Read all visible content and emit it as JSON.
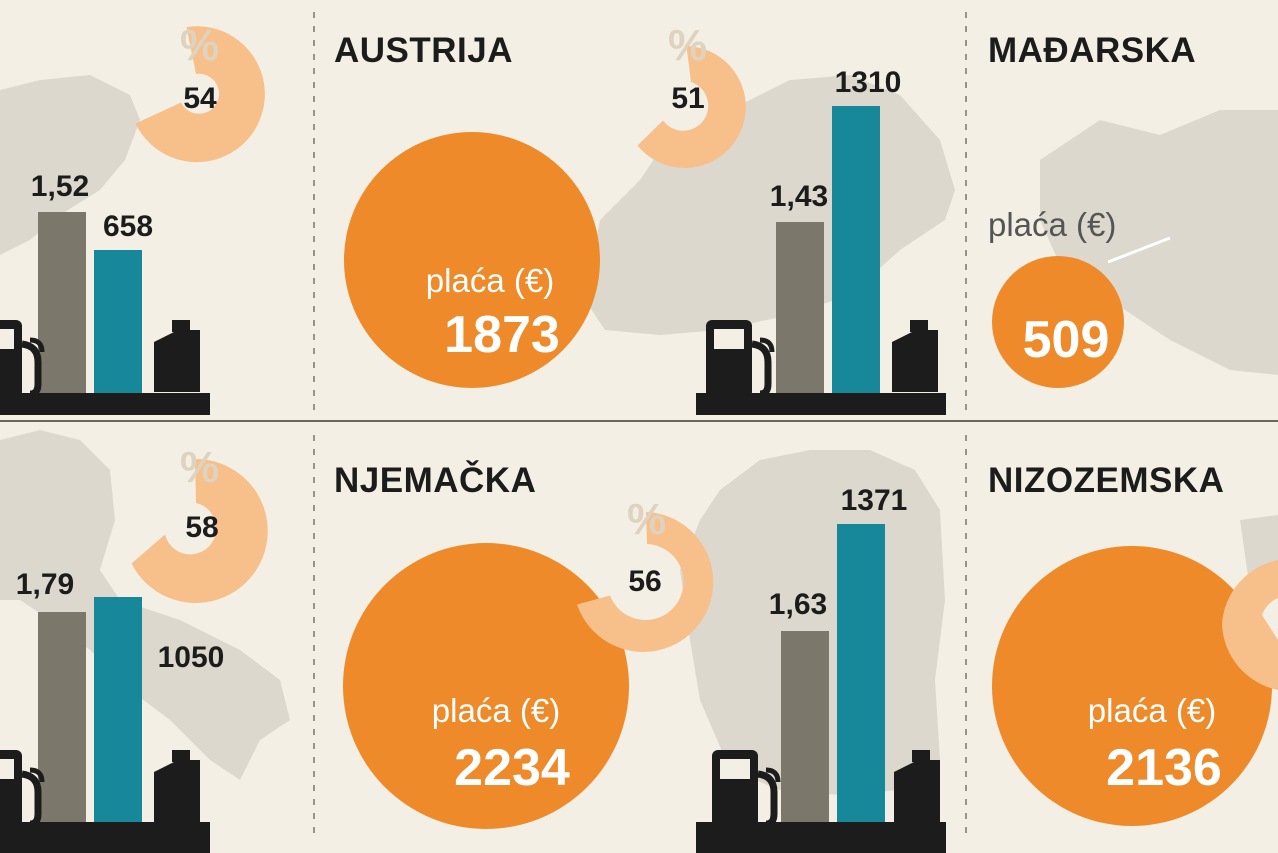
{
  "labels": {
    "salary": "plaća (€)",
    "percent_sign": "%"
  },
  "colors": {
    "background": "#f4efe4",
    "salary_circle": "#ee8a2a",
    "percent_ring": "#f7c08b",
    "fuel_price_bar": "#7b776a",
    "teal_bar": "#17889a",
    "map": "#ddd8ce",
    "pump_icon": "#1c1c1c"
  },
  "icons": [
    "fuel-pump-icon",
    "jerrycan-icon"
  ],
  "chart_data": [
    {
      "type": "bar",
      "panel": "top-left",
      "country": "",
      "fuel_price": "1,52",
      "bar_value": "658",
      "percent": "54",
      "salary": ""
    },
    {
      "type": "bar",
      "panel": "top-middle",
      "country": "AUSTRIJA",
      "fuel_price": "1,43",
      "bar_value": "1310",
      "percent": "51",
      "salary": "1873"
    },
    {
      "type": "bar",
      "panel": "top-right",
      "country": "MAĐARSKA",
      "fuel_price": "",
      "bar_value": "",
      "percent": "",
      "salary": "509"
    },
    {
      "type": "bar",
      "panel": "bottom-left",
      "country": "",
      "fuel_price": "1,79",
      "bar_value": "1050",
      "percent": "58",
      "salary": ""
    },
    {
      "type": "bar",
      "panel": "bottom-middle",
      "country": "NJEMAČKA",
      "fuel_price": "1,63",
      "bar_value": "1371",
      "percent": "56",
      "salary": "2234"
    },
    {
      "type": "bar",
      "panel": "bottom-right",
      "country": "NIZOZEMSKA",
      "fuel_price": "",
      "bar_value": "",
      "percent": "",
      "salary": "2136"
    }
  ]
}
